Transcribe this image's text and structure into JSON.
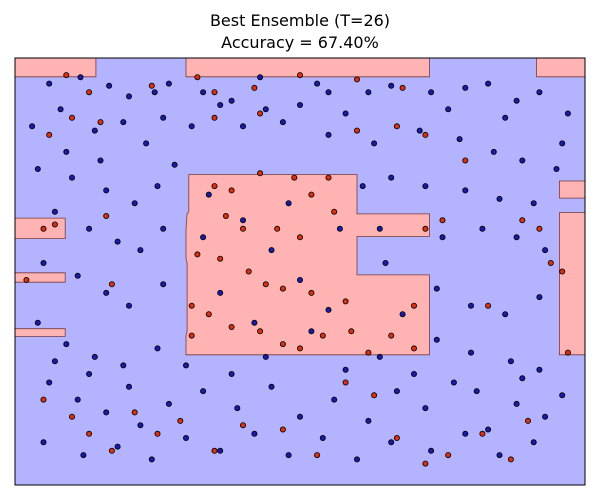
{
  "chart_data": {
    "type": "scatter",
    "title": "Best Ensemble (T=26)",
    "subtitle": "Accuracy = 67.40%",
    "xlim": [
      0,
      1
    ],
    "ylim": [
      0,
      1
    ],
    "grid": false,
    "axes_visible": false,
    "colors": {
      "region_blue": "#b3b3ff",
      "region_red": "#ffb3b3",
      "point_blue": "#1a1aa8",
      "point_red": "#d83010",
      "edge": "#000000"
    },
    "regions": [
      {
        "name": "red-region-center",
        "class": "red",
        "polygon": [
          [
            0.3,
            0.6
          ],
          [
            0.302,
            0.635
          ],
          [
            0.305,
            0.64
          ],
          [
            0.305,
            0.727
          ],
          [
            0.6,
            0.727
          ],
          [
            0.6,
            0.635
          ],
          [
            0.727,
            0.635
          ],
          [
            0.727,
            0.582
          ],
          [
            0.6,
            0.582
          ],
          [
            0.6,
            0.492
          ],
          [
            0.727,
            0.492
          ],
          [
            0.727,
            0.305
          ],
          [
            0.3,
            0.305
          ],
          [
            0.3,
            0.35
          ],
          [
            0.302,
            0.36
          ],
          [
            0.302,
            0.52
          ],
          [
            0.3,
            0.53
          ]
        ]
      },
      {
        "name": "red-region-top-left",
        "class": "red",
        "polygon": [
          [
            0.0,
            0.956
          ],
          [
            0.142,
            0.956
          ],
          [
            0.142,
            1.0
          ],
          [
            0.0,
            1.0
          ]
        ]
      },
      {
        "name": "red-region-top-mid",
        "class": "red",
        "polygon": [
          [
            0.3,
            0.956
          ],
          [
            0.727,
            0.956
          ],
          [
            0.727,
            1.0
          ],
          [
            0.3,
            1.0
          ]
        ]
      },
      {
        "name": "red-region-top-right",
        "class": "red",
        "polygon": [
          [
            0.915,
            0.956
          ],
          [
            1.0,
            0.956
          ],
          [
            1.0,
            1.0
          ],
          [
            0.915,
            1.0
          ]
        ]
      },
      {
        "name": "red-region-right-small",
        "class": "red",
        "polygon": [
          [
            0.955,
            0.672
          ],
          [
            1.0,
            0.672
          ],
          [
            1.0,
            0.712
          ],
          [
            0.955,
            0.712
          ]
        ]
      },
      {
        "name": "red-region-right-tall",
        "class": "red",
        "polygon": [
          [
            0.955,
            0.305
          ],
          [
            1.0,
            0.305
          ],
          [
            1.0,
            0.638
          ],
          [
            0.955,
            0.638
          ]
        ]
      },
      {
        "name": "red-region-left-1",
        "class": "red",
        "polygon": [
          [
            0.0,
            0.577
          ],
          [
            0.088,
            0.577
          ],
          [
            0.088,
            0.625
          ],
          [
            0.0,
            0.625
          ]
        ]
      },
      {
        "name": "red-region-left-2",
        "class": "red",
        "polygon": [
          [
            0.0,
            0.475
          ],
          [
            0.088,
            0.475
          ],
          [
            0.088,
            0.497
          ],
          [
            0.0,
            0.497
          ]
        ]
      },
      {
        "name": "red-region-left-3",
        "class": "red",
        "polygon": [
          [
            0.0,
            0.348
          ],
          [
            0.088,
            0.348
          ],
          [
            0.088,
            0.366
          ],
          [
            0.0,
            0.366
          ]
        ]
      }
    ],
    "series": [
      {
        "class": "blue",
        "points": [
          [
            0.06,
            0.94
          ],
          [
            0.115,
            0.955
          ],
          [
            0.165,
            0.935
          ],
          [
            0.2,
            0.91
          ],
          [
            0.245,
            0.92
          ],
          [
            0.33,
            0.92
          ],
          [
            0.38,
            0.9
          ],
          [
            0.43,
            0.955
          ],
          [
            0.53,
            0.94
          ],
          [
            0.55,
            0.92
          ],
          [
            0.62,
            0.92
          ],
          [
            0.66,
            0.935
          ],
          [
            0.73,
            0.92
          ],
          [
            0.79,
            0.93
          ],
          [
            0.83,
            0.94
          ],
          [
            0.88,
            0.9
          ],
          [
            0.92,
            0.92
          ],
          [
            0.08,
            0.88
          ],
          [
            0.14,
            0.83
          ],
          [
            0.19,
            0.85
          ],
          [
            0.26,
            0.86
          ],
          [
            0.31,
            0.84
          ],
          [
            0.4,
            0.84
          ],
          [
            0.47,
            0.85
          ],
          [
            0.55,
            0.82
          ],
          [
            0.63,
            0.8
          ],
          [
            0.71,
            0.83
          ],
          [
            0.78,
            0.81
          ],
          [
            0.84,
            0.78
          ],
          [
            0.89,
            0.76
          ],
          [
            0.95,
            0.74
          ],
          [
            0.04,
            0.74
          ],
          [
            0.1,
            0.72
          ],
          [
            0.16,
            0.69
          ],
          [
            0.21,
            0.66
          ],
          [
            0.25,
            0.7
          ],
          [
            0.61,
            0.7
          ],
          [
            0.66,
            0.72
          ],
          [
            0.72,
            0.7
          ],
          [
            0.79,
            0.69
          ],
          [
            0.85,
            0.67
          ],
          [
            0.91,
            0.66
          ],
          [
            0.07,
            0.64
          ],
          [
            0.13,
            0.6
          ],
          [
            0.18,
            0.57
          ],
          [
            0.22,
            0.55
          ],
          [
            0.26,
            0.6
          ],
          [
            0.64,
            0.6
          ],
          [
            0.75,
            0.58
          ],
          [
            0.82,
            0.6
          ],
          [
            0.88,
            0.58
          ],
          [
            0.93,
            0.55
          ],
          [
            0.05,
            0.52
          ],
          [
            0.11,
            0.49
          ],
          [
            0.16,
            0.45
          ],
          [
            0.2,
            0.42
          ],
          [
            0.26,
            0.47
          ],
          [
            0.65,
            0.52
          ],
          [
            0.74,
            0.46
          ],
          [
            0.8,
            0.42
          ],
          [
            0.86,
            0.4
          ],
          [
            0.92,
            0.44
          ],
          [
            0.04,
            0.38
          ],
          [
            0.09,
            0.33
          ],
          [
            0.14,
            0.3
          ],
          [
            0.19,
            0.28
          ],
          [
            0.25,
            0.32
          ],
          [
            0.74,
            0.34
          ],
          [
            0.8,
            0.31
          ],
          [
            0.87,
            0.29
          ],
          [
            0.92,
            0.27
          ],
          [
            0.06,
            0.24
          ],
          [
            0.11,
            0.2
          ],
          [
            0.16,
            0.17
          ],
          [
            0.22,
            0.14
          ],
          [
            0.27,
            0.19
          ],
          [
            0.33,
            0.22
          ],
          [
            0.39,
            0.18
          ],
          [
            0.45,
            0.23
          ],
          [
            0.5,
            0.16
          ],
          [
            0.56,
            0.2
          ],
          [
            0.62,
            0.15
          ],
          [
            0.67,
            0.22
          ],
          [
            0.72,
            0.18
          ],
          [
            0.77,
            0.24
          ],
          [
            0.83,
            0.13
          ],
          [
            0.88,
            0.19
          ],
          [
            0.93,
            0.16
          ],
          [
            0.05,
            0.1
          ],
          [
            0.12,
            0.07
          ],
          [
            0.18,
            0.09
          ],
          [
            0.24,
            0.06
          ],
          [
            0.3,
            0.11
          ],
          [
            0.36,
            0.08
          ],
          [
            0.42,
            0.12
          ],
          [
            0.48,
            0.07
          ],
          [
            0.54,
            0.11
          ],
          [
            0.6,
            0.06
          ],
          [
            0.66,
            0.1
          ],
          [
            0.73,
            0.08
          ],
          [
            0.79,
            0.12
          ],
          [
            0.85,
            0.07
          ],
          [
            0.91,
            0.1
          ],
          [
            0.34,
            0.68
          ],
          [
            0.4,
            0.62
          ],
          [
            0.45,
            0.55
          ],
          [
            0.5,
            0.48
          ],
          [
            0.55,
            0.41
          ],
          [
            0.48,
            0.66
          ],
          [
            0.42,
            0.38
          ],
          [
            0.36,
            0.45
          ],
          [
            0.33,
            0.58
          ],
          [
            0.57,
            0.6
          ],
          [
            0.68,
            0.4
          ],
          [
            0.52,
            0.36
          ],
          [
            0.03,
            0.84
          ],
          [
            0.09,
            0.78
          ],
          [
            0.15,
            0.76
          ],
          [
            0.23,
            0.8
          ],
          [
            0.28,
            0.75
          ],
          [
            0.97,
            0.87
          ],
          [
            0.96,
            0.8
          ],
          [
            0.86,
            0.86
          ],
          [
            0.76,
            0.88
          ],
          [
            0.58,
            0.87
          ],
          [
            0.5,
            0.89
          ],
          [
            0.44,
            0.88
          ],
          [
            0.36,
            0.89
          ],
          [
            0.27,
            0.94
          ],
          [
            0.07,
            0.29
          ],
          [
            0.13,
            0.26
          ],
          [
            0.2,
            0.23
          ],
          [
            0.3,
            0.28
          ],
          [
            0.38,
            0.26
          ],
          [
            0.44,
            0.3
          ],
          [
            0.58,
            0.27
          ],
          [
            0.64,
            0.3
          ],
          [
            0.7,
            0.26
          ],
          [
            0.81,
            0.22
          ],
          [
            0.89,
            0.25
          ],
          [
            0.96,
            0.21
          ]
        ]
      },
      {
        "class": "red",
        "points": [
          [
            0.09,
            0.96
          ],
          [
            0.13,
            0.92
          ],
          [
            0.24,
            0.935
          ],
          [
            0.32,
            0.955
          ],
          [
            0.35,
            0.92
          ],
          [
            0.42,
            0.93
          ],
          [
            0.5,
            0.96
          ],
          [
            0.6,
            0.95
          ],
          [
            0.68,
            0.93
          ],
          [
            0.1,
            0.86
          ],
          [
            0.06,
            0.82
          ],
          [
            0.15,
            0.85
          ],
          [
            0.35,
            0.86
          ],
          [
            0.43,
            0.87
          ],
          [
            0.6,
            0.83
          ],
          [
            0.67,
            0.84
          ],
          [
            0.72,
            0.82
          ],
          [
            0.79,
            0.76
          ],
          [
            0.05,
            0.6
          ],
          [
            0.07,
            0.61
          ],
          [
            0.02,
            0.48
          ],
          [
            0.16,
            0.63
          ],
          [
            0.17,
            0.47
          ],
          [
            0.35,
            0.7
          ],
          [
            0.38,
            0.69
          ],
          [
            0.43,
            0.73
          ],
          [
            0.49,
            0.72
          ],
          [
            0.52,
            0.68
          ],
          [
            0.55,
            0.72
          ],
          [
            0.37,
            0.63
          ],
          [
            0.4,
            0.6
          ],
          [
            0.46,
            0.6
          ],
          [
            0.5,
            0.58
          ],
          [
            0.56,
            0.64
          ],
          [
            0.32,
            0.54
          ],
          [
            0.36,
            0.53
          ],
          [
            0.41,
            0.5
          ],
          [
            0.44,
            0.47
          ],
          [
            0.47,
            0.46
          ],
          [
            0.52,
            0.45
          ],
          [
            0.31,
            0.42
          ],
          [
            0.34,
            0.4
          ],
          [
            0.38,
            0.37
          ],
          [
            0.43,
            0.36
          ],
          [
            0.47,
            0.33
          ],
          [
            0.5,
            0.32
          ],
          [
            0.54,
            0.35
          ],
          [
            0.59,
            0.36
          ],
          [
            0.62,
            0.31
          ],
          [
            0.66,
            0.35
          ],
          [
            0.7,
            0.32
          ],
          [
            0.31,
            0.35
          ],
          [
            0.58,
            0.43
          ],
          [
            0.72,
            0.6
          ],
          [
            0.75,
            0.62
          ],
          [
            0.89,
            0.62
          ],
          [
            0.92,
            0.6
          ],
          [
            0.94,
            0.52
          ],
          [
            0.96,
            0.5
          ],
          [
            0.83,
            0.42
          ],
          [
            0.7,
            0.42
          ],
          [
            0.05,
            0.2
          ],
          [
            0.1,
            0.16
          ],
          [
            0.13,
            0.12
          ],
          [
            0.17,
            0.08
          ],
          [
            0.21,
            0.17
          ],
          [
            0.25,
            0.12
          ],
          [
            0.29,
            0.15
          ],
          [
            0.35,
            0.08
          ],
          [
            0.4,
            0.14
          ],
          [
            0.47,
            0.13
          ],
          [
            0.53,
            0.07
          ],
          [
            0.58,
            0.24
          ],
          [
            0.63,
            0.21
          ],
          [
            0.67,
            0.11
          ],
          [
            0.72,
            0.05
          ],
          [
            0.76,
            0.07
          ],
          [
            0.82,
            0.12
          ],
          [
            0.87,
            0.06
          ],
          [
            0.9,
            0.15
          ],
          [
            0.97,
            0.31
          ]
        ]
      }
    ]
  }
}
